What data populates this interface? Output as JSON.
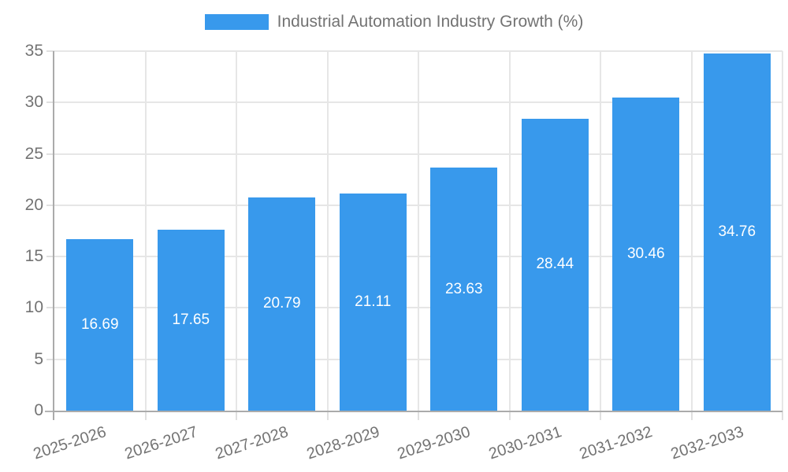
{
  "legend": {
    "label": "Industrial Automation Industry Growth (%)"
  },
  "chart_data": {
    "type": "bar",
    "title": "Industrial Automation Industry Growth (%)",
    "series_name": "Industrial Automation Industry Growth (%)",
    "categories": [
      "2025-2026",
      "2026-2027",
      "2027-2028",
      "2028-2029",
      "2029-2030",
      "2030-2031",
      "2031-2032",
      "2032-2033"
    ],
    "values": [
      16.69,
      17.65,
      20.79,
      21.11,
      23.63,
      28.44,
      30.46,
      34.76
    ],
    "value_labels": [
      "16.69",
      "17.65",
      "20.79",
      "21.11",
      "23.63",
      "28.44",
      "30.46",
      "34.76"
    ],
    "xlabel": "",
    "ylabel": "",
    "ylim": [
      0,
      35
    ],
    "yticks": [
      0,
      5,
      10,
      15,
      20,
      25,
      30,
      35
    ],
    "grid": true,
    "legend_position": "top",
    "x_label_rotation_deg": -18,
    "colors": {
      "bar": "#3899ec",
      "grid": "#e6e6e6",
      "axis_line": "#ababab",
      "tick_text": "#737373",
      "value_label": "#ffffff",
      "background": "#ffffff"
    }
  }
}
